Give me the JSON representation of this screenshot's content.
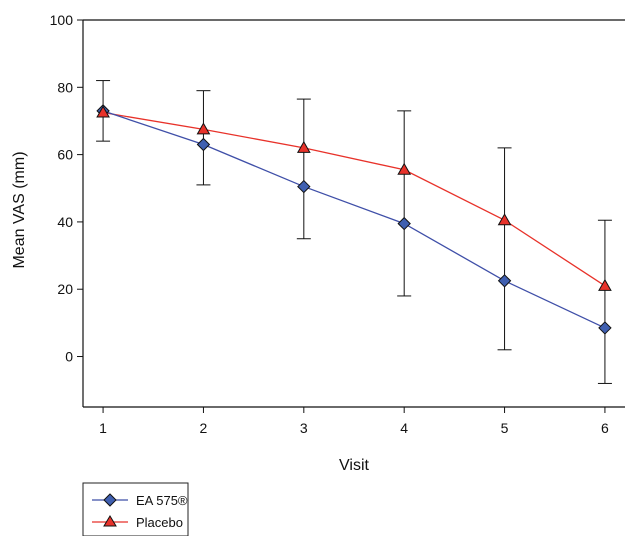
{
  "chart_data": {
    "type": "line",
    "title": "",
    "xlabel": "Visit",
    "ylabel": "Mean VAS (mm)",
    "x": [
      1,
      2,
      3,
      4,
      5,
      6
    ],
    "xlim": [
      0.8,
      6.2
    ],
    "ylim": [
      -15,
      100
    ],
    "yticks": [
      0,
      20,
      40,
      60,
      80,
      100
    ],
    "xticks": [
      1,
      2,
      3,
      4,
      5,
      6
    ],
    "grid": false,
    "legend_position": "bottom-left",
    "series": [
      {
        "name": "EA 575®",
        "color": "#3f4fa8",
        "marker": "diamond",
        "marker_fill": "#3f5fb0",
        "values": [
          73,
          63,
          50.5,
          39.5,
          22.5,
          8.5
        ],
        "error_upper": [
          82,
          79,
          76.5,
          73,
          62,
          40.5
        ],
        "error_lower": [
          64,
          51,
          35,
          18,
          2,
          -8
        ]
      },
      {
        "name": "Placebo",
        "color": "#e8322a",
        "marker": "triangle",
        "marker_fill": "#e8322a",
        "values": [
          72.5,
          67.5,
          62,
          55.5,
          40.5,
          21
        ]
      }
    ]
  }
}
